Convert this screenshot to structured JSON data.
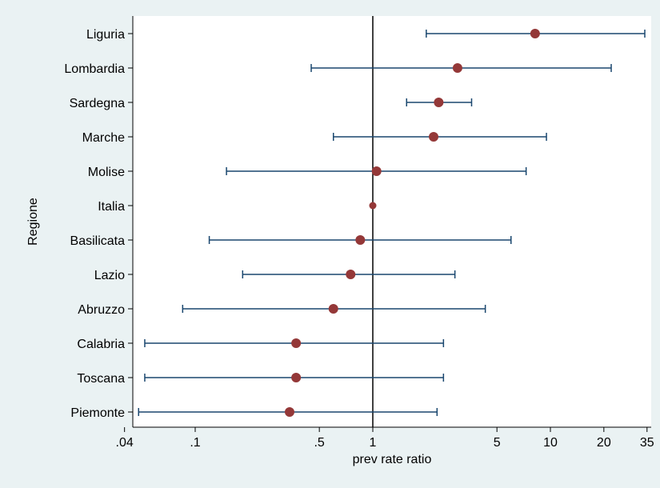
{
  "chart_data": {
    "type": "scatter",
    "subtype": "forest-plot",
    "xlabel": "prev rate ratio",
    "ylabel": "Regione",
    "x_scale": "log",
    "xlim": [
      0.04,
      40
    ],
    "x_ticks": [
      {
        "value": 0.04,
        "label": ".04"
      },
      {
        "value": 0.1,
        "label": ".1"
      },
      {
        "value": 0.5,
        "label": ".5"
      },
      {
        "value": 1,
        "label": "1"
      },
      {
        "value": 5,
        "label": "5"
      },
      {
        "value": 10,
        "label": "10"
      },
      {
        "value": 20,
        "label": "20"
      },
      {
        "value": 35,
        "label": "35"
      }
    ],
    "reference_line": 1,
    "grid": false,
    "colors": {
      "point": "#943838",
      "ci": "#1a476f",
      "ref": "#000000",
      "plot_bg": "#ffffff",
      "page_bg": "#eaf2f3"
    },
    "rows": [
      {
        "label": "Liguria",
        "estimate": 8.2,
        "lower": 2.0,
        "upper": 34
      },
      {
        "label": "Lombardia",
        "estimate": 3.0,
        "lower": 0.45,
        "upper": 22
      },
      {
        "label": "Sardegna",
        "estimate": 2.35,
        "lower": 1.55,
        "upper": 3.6
      },
      {
        "label": "Marche",
        "estimate": 2.2,
        "lower": 0.6,
        "upper": 9.5
      },
      {
        "label": "Molise",
        "estimate": 1.05,
        "lower": 0.15,
        "upper": 7.3
      },
      {
        "label": "Italia",
        "estimate": 1.0,
        "lower": null,
        "upper": null
      },
      {
        "label": "Basilicata",
        "estimate": 0.85,
        "lower": 0.12,
        "upper": 6.0
      },
      {
        "label": "Lazio",
        "estimate": 0.75,
        "lower": 0.185,
        "upper": 2.9
      },
      {
        "label": "Abruzzo",
        "estimate": 0.6,
        "lower": 0.085,
        "upper": 4.3
      },
      {
        "label": "Calabria",
        "estimate": 0.37,
        "lower": 0.052,
        "upper": 2.5
      },
      {
        "label": "Toscana",
        "estimate": 0.37,
        "lower": 0.052,
        "upper": 2.5
      },
      {
        "label": "Piemonte",
        "estimate": 0.34,
        "lower": 0.048,
        "upper": 2.3
      }
    ]
  }
}
